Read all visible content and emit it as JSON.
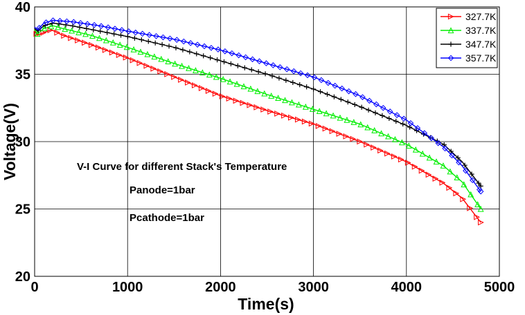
{
  "chart_data": {
    "type": "line",
    "title": "",
    "xlabel": "Time(s)",
    "ylabel": "Voltage(V)",
    "xlim": [
      0,
      5000
    ],
    "ylim": [
      20,
      40
    ],
    "xticks": [
      0,
      1000,
      2000,
      3000,
      4000,
      5000
    ],
    "yticks": [
      20,
      25,
      30,
      35,
      40
    ],
    "grid": true,
    "legend": "top-right",
    "annotations": [
      "V-I Curve for different Stack's Temperature",
      "Panode=1bar",
      "Pcathode=1bar"
    ],
    "series": [
      {
        "name": "327.7K",
        "color": "#ff0000",
        "marker": "triangle-right",
        "x": [
          0,
          30,
          100,
          180,
          300,
          600,
          1000,
          1500,
          2000,
          2500,
          3000,
          3500,
          4000,
          4400,
          4600,
          4800
        ],
        "y": [
          38.2,
          37.9,
          38.1,
          38.3,
          37.9,
          37.2,
          36.2,
          34.8,
          33.4,
          32.3,
          31.3,
          30.0,
          28.5,
          26.9,
          25.8,
          24.0
        ]
      },
      {
        "name": "337.7K",
        "color": "#00ee00",
        "marker": "triangle-up",
        "x": [
          0,
          30,
          100,
          200,
          300,
          600,
          1000,
          1500,
          2000,
          2500,
          3000,
          3500,
          4000,
          4400,
          4600,
          4800
        ],
        "y": [
          38.3,
          38.0,
          38.4,
          38.6,
          38.4,
          37.9,
          37.0,
          35.8,
          34.7,
          33.5,
          32.4,
          31.3,
          29.8,
          28.2,
          27.0,
          25.0
        ]
      },
      {
        "name": "347.7K",
        "color": "#000000",
        "marker": "plus",
        "x": [
          0,
          30,
          100,
          200,
          400,
          700,
          1000,
          1500,
          2000,
          2500,
          3000,
          3500,
          4000,
          4400,
          4600,
          4800
        ],
        "y": [
          38.4,
          38.2,
          38.6,
          38.8,
          38.6,
          38.2,
          37.8,
          37.0,
          36.0,
          35.0,
          33.9,
          32.6,
          31.2,
          29.8,
          28.5,
          26.7
        ]
      },
      {
        "name": "357.7K",
        "color": "#0000ff",
        "marker": "diamond",
        "x": [
          0,
          30,
          100,
          200,
          400,
          700,
          1000,
          1500,
          2000,
          2500,
          3000,
          3500,
          4000,
          4400,
          4600,
          4800
        ],
        "y": [
          38.5,
          38.3,
          38.8,
          39.0,
          38.9,
          38.6,
          38.2,
          37.6,
          36.8,
          35.8,
          34.8,
          33.4,
          31.6,
          29.6,
          28.2,
          26.3
        ]
      }
    ]
  }
}
